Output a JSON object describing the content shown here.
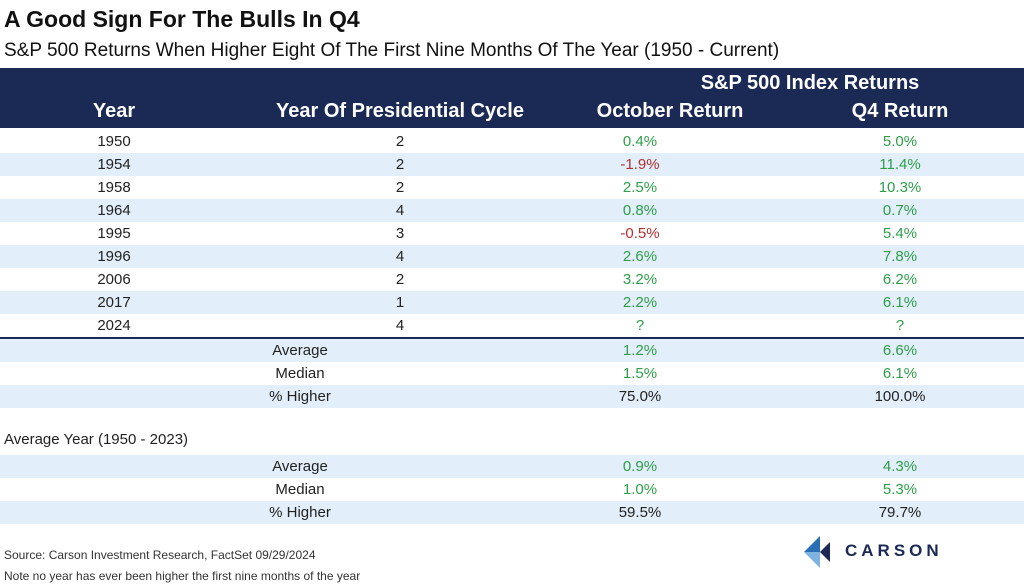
{
  "title": "A Good Sign For The Bulls In Q4",
  "subtitle": "S&P 500 Returns When Higher Eight Of The First Nine Months Of The Year (1950 - Current)",
  "header": {
    "group_label": "S&P 500 Index Returns",
    "col_year": "Year",
    "col_cycle": "Year Of Presidential Cycle",
    "col_oct": "October Return",
    "col_q4": "Q4 Return"
  },
  "rows": [
    {
      "year": "1950",
      "cycle": "2",
      "oct": "0.4%",
      "q4": "5.0%"
    },
    {
      "year": "1954",
      "cycle": "2",
      "oct": "-1.9%",
      "q4": "11.4%"
    },
    {
      "year": "1958",
      "cycle": "2",
      "oct": "2.5%",
      "q4": "10.3%"
    },
    {
      "year": "1964",
      "cycle": "4",
      "oct": "0.8%",
      "q4": "0.7%"
    },
    {
      "year": "1995",
      "cycle": "3",
      "oct": "-0.5%",
      "q4": "5.4%"
    },
    {
      "year": "1996",
      "cycle": "4",
      "oct": "2.6%",
      "q4": "7.8%"
    },
    {
      "year": "2006",
      "cycle": "2",
      "oct": "3.2%",
      "q4": "6.2%"
    },
    {
      "year": "2017",
      "cycle": "1",
      "oct": "2.2%",
      "q4": "6.1%"
    },
    {
      "year": "2024",
      "cycle": "4",
      "oct": "?",
      "q4": "?"
    }
  ],
  "summary": [
    {
      "label": "Average",
      "oct": "1.2%",
      "q4": "6.6%"
    },
    {
      "label": "Median",
      "oct": "1.5%",
      "q4": "6.1%"
    },
    {
      "label": "% Higher",
      "oct": "75.0%",
      "q4": "100.0%"
    }
  ],
  "avg_year": {
    "label": "Average Year (1950 - 2023)",
    "rows": [
      {
        "label": "Average",
        "oct": "0.9%",
        "q4": "4.3%"
      },
      {
        "label": "Median",
        "oct": "1.0%",
        "q4": "5.3%"
      },
      {
        "label": "% Higher",
        "oct": "59.5%",
        "q4": "79.7%"
      }
    ]
  },
  "source": "Source: Carson Investment Research, FactSet 09/29/2024",
  "note": "Note no year has ever been higher the first nine months of the year",
  "logo_text": "CARSON",
  "colors": {
    "header_bg": "#1b2a55",
    "positive": "#2e9e4a",
    "negative": "#b03030",
    "alt_row": "#e2eef9"
  },
  "chart_data": {
    "type": "table",
    "title": "A Good Sign For The Bulls In Q4",
    "subtitle": "S&P 500 Returns When Higher Eight Of The First Nine Months Of The Year (1950 - Current)",
    "columns": [
      "Year",
      "Year Of Presidential Cycle",
      "October Return",
      "Q4 Return"
    ],
    "rows": [
      [
        "1950",
        2,
        0.4,
        5.0
      ],
      [
        "1954",
        2,
        -1.9,
        11.4
      ],
      [
        "1958",
        2,
        2.5,
        10.3
      ],
      [
        "1964",
        4,
        0.8,
        0.7
      ],
      [
        "1995",
        3,
        -0.5,
        5.4
      ],
      [
        "1996",
        4,
        2.6,
        7.8
      ],
      [
        "2006",
        2,
        3.2,
        6.2
      ],
      [
        "2017",
        1,
        2.2,
        6.1
      ],
      [
        "2024",
        4,
        null,
        null
      ]
    ]
  }
}
